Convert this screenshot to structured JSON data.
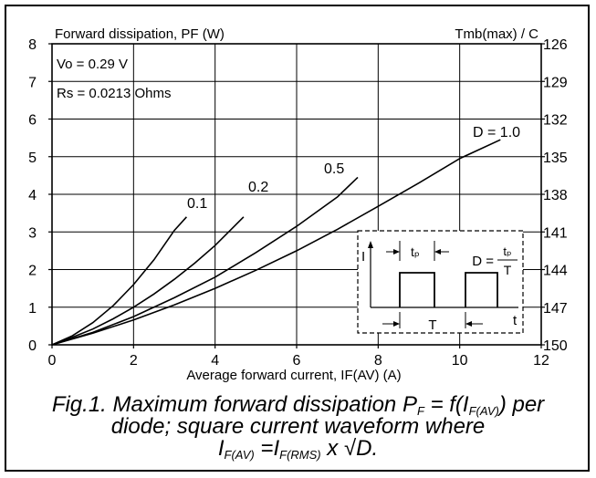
{
  "chart_data": {
    "type": "line",
    "title": "Forward dissipation, PF (W)",
    "right_axis_title": "Tmb(max) / C",
    "xlabel": "Average forward current, IF(AV) (A)",
    "ylabel": "",
    "xlim": [
      0,
      12
    ],
    "ylim": [
      0,
      8
    ],
    "x_ticks": [
      "0",
      "2",
      "4",
      "6",
      "8",
      "10",
      "12"
    ],
    "y_ticks": [
      "0",
      "1",
      "2",
      "3",
      "4",
      "5",
      "6",
      "7",
      "8"
    ],
    "y2_ticks": [
      "150",
      "147",
      "144",
      "141",
      "138",
      "135",
      "132",
      "129",
      "126"
    ],
    "grid": true,
    "annotations": [
      "Vo = 0.29 V",
      "Rs = 0.0213 Ohms"
    ],
    "series": [
      {
        "name": "0.1",
        "x": [
          0,
          0.5,
          1,
          1.5,
          2,
          2.5,
          3,
          3.3
        ],
        "y": [
          0,
          0.24,
          0.59,
          1.04,
          1.6,
          2.26,
          3.04,
          3.4
        ]
      },
      {
        "name": "0.2",
        "x": [
          0,
          0.5,
          1,
          1.5,
          2,
          2.5,
          3,
          3.5,
          4,
          4.7
        ],
        "y": [
          0,
          0.2,
          0.42,
          0.69,
          1.0,
          1.35,
          1.74,
          2.17,
          2.64,
          3.4
        ]
      },
      {
        "name": "0.5",
        "x": [
          0,
          1,
          2,
          3,
          4,
          5,
          6,
          7,
          7.5
        ],
        "y": [
          0,
          0.33,
          0.75,
          1.25,
          1.8,
          2.45,
          3.15,
          3.93,
          4.45
        ]
      },
      {
        "name": "D = 1.0",
        "x": [
          0,
          1,
          2,
          3,
          4,
          5,
          6,
          7,
          8,
          9,
          10,
          11
        ],
        "y": [
          0,
          0.31,
          0.66,
          1.06,
          1.5,
          1.98,
          2.5,
          3.07,
          3.68,
          4.3,
          4.95,
          5.45
        ]
      }
    ],
    "inset": {
      "label_I": "I",
      "label_tp": "tₚ",
      "label_T": "T",
      "label_t": "t",
      "formula_left": "D =",
      "formula_num": "tₚ",
      "formula_den": "T"
    }
  },
  "caption": {
    "line1_a": "Fig.1.   Maximum forward dissipation P",
    "line1_sub1": "F",
    "line1_b": " = f(I",
    "line1_sub2": "F(AV)",
    "line1_c": ") per",
    "line2": "diode; square current waveform where",
    "line3_a": "I",
    "line3_sub1": "F(AV)",
    "line3_b": " =I",
    "line3_sub2": "F(RMS)",
    "line3_c": " x √D."
  }
}
